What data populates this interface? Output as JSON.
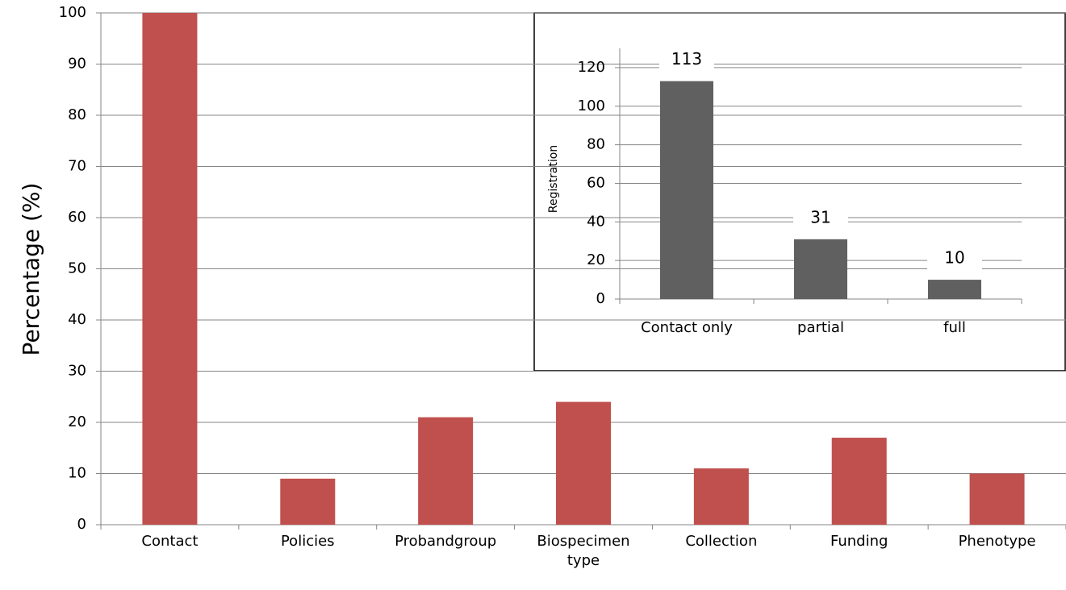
{
  "chart_data": [
    {
      "type": "bar",
      "y_label": "Percentage (%)",
      "categories": [
        "Contact",
        "Policies",
        "Probandgroup",
        "Biospecimen type",
        "Collection",
        "Funding",
        "Phenotype"
      ],
      "values": [
        100,
        9,
        21,
        24,
        11,
        17,
        10
      ],
      "color": "#c0504d",
      "ylim": [
        0,
        100
      ],
      "yticks": [
        0,
        10,
        20,
        30,
        40,
        50,
        60,
        70,
        80,
        90,
        100
      ],
      "grid": true
    },
    {
      "type": "bar",
      "y_label": "Registration",
      "categories": [
        "Contact only",
        "partial",
        "full"
      ],
      "values": [
        113,
        31,
        10
      ],
      "color": "#606060",
      "ylim": [
        0,
        130
      ],
      "yticks": [
        0,
        20,
        40,
        60,
        80,
        100,
        120
      ],
      "grid": true
    }
  ]
}
